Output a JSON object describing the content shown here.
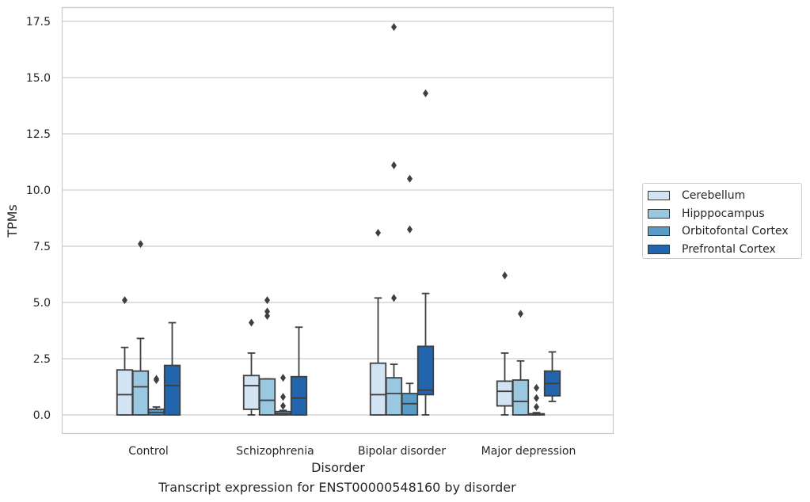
{
  "chart_data": {
    "type": "box",
    "title": "",
    "caption": "Transcript expression for ENST00000548160 by disorder",
    "xlabel": "Disorder",
    "ylabel": "TPMs",
    "ylim": [
      -0.85,
      18.15
    ],
    "yticks": [
      "0.0",
      "2.5",
      "5.0",
      "7.5",
      "10.0",
      "12.5",
      "15.0",
      "17.5"
    ],
    "grid": "horizontal",
    "legend_position": "right",
    "categories": [
      "Control",
      "Schizophrenia",
      "Bipolar disorder",
      "Major depression"
    ],
    "series": [
      {
        "name": "Cerebellum",
        "color": "#d2e3f3",
        "boxes": [
          {
            "q1": 0.0,
            "median": 0.9,
            "q3": 2.0,
            "whisker_low": 0.0,
            "whisker_high": 3.0,
            "outliers": [
              5.1
            ]
          },
          {
            "q1": 0.25,
            "median": 1.3,
            "q3": 1.75,
            "whisker_low": 0.0,
            "whisker_high": 2.75,
            "outliers": [
              4.1
            ]
          },
          {
            "q1": 0.0,
            "median": 0.9,
            "q3": 2.3,
            "whisker_low": 0.0,
            "whisker_high": 5.2,
            "outliers": [
              8.1
            ]
          },
          {
            "q1": 0.4,
            "median": 1.05,
            "q3": 1.5,
            "whisker_low": 0.0,
            "whisker_high": 2.75,
            "outliers": [
              6.2
            ]
          }
        ]
      },
      {
        "name": "Hipppocampus",
        "color": "#9ac8e0",
        "boxes": [
          {
            "q1": 0.0,
            "median": 1.25,
            "q3": 1.95,
            "whisker_low": 0.0,
            "whisker_high": 3.4,
            "outliers": [
              7.6
            ]
          },
          {
            "q1": 0.0,
            "median": 0.65,
            "q3": 1.6,
            "whisker_low": 0.0,
            "whisker_high": 1.6,
            "outliers": [
              4.4,
              4.6,
              5.1
            ]
          },
          {
            "q1": 0.0,
            "median": 0.95,
            "q3": 1.65,
            "whisker_low": 0.0,
            "whisker_high": 2.25,
            "outliers": [
              5.2,
              11.1,
              17.25
            ]
          },
          {
            "q1": 0.0,
            "median": 0.6,
            "q3": 1.55,
            "whisker_low": 0.0,
            "whisker_high": 2.4,
            "outliers": [
              4.5
            ]
          }
        ]
      },
      {
        "name": "Orbitofontal Cortex",
        "color": "#5a9cc8",
        "boxes": [
          {
            "q1": 0.0,
            "median": 0.1,
            "q3": 0.25,
            "whisker_low": 0.0,
            "whisker_high": 0.35,
            "outliers": [
              1.55,
              1.6
            ]
          },
          {
            "q1": 0.0,
            "median": 0.05,
            "q3": 0.15,
            "whisker_low": 0.0,
            "whisker_high": 0.2,
            "outliers": [
              0.4,
              0.8,
              1.65
            ]
          },
          {
            "q1": 0.0,
            "median": 0.5,
            "q3": 0.95,
            "whisker_low": 0.0,
            "whisker_high": 1.4,
            "outliers": [
              8.25,
              10.5
            ]
          },
          {
            "q1": 0.0,
            "median": 0.02,
            "q3": 0.05,
            "whisker_low": 0.0,
            "whisker_high": 0.1,
            "outliers": [
              0.35,
              0.75,
              1.2
            ]
          }
        ]
      },
      {
        "name": "Prefrontal Cortex",
        "color": "#2166ac",
        "boxes": [
          {
            "q1": 0.0,
            "median": 1.3,
            "q3": 2.2,
            "whisker_low": 0.0,
            "whisker_high": 4.1,
            "outliers": []
          },
          {
            "q1": 0.0,
            "median": 0.75,
            "q3": 1.7,
            "whisker_low": 0.0,
            "whisker_high": 3.9,
            "outliers": []
          },
          {
            "q1": 0.9,
            "median": 1.1,
            "q3": 3.05,
            "whisker_low": 0.0,
            "whisker_high": 5.4,
            "outliers": [
              14.3
            ]
          },
          {
            "q1": 0.85,
            "median": 1.4,
            "q3": 1.95,
            "whisker_low": 0.6,
            "whisker_high": 2.8,
            "outliers": []
          }
        ]
      }
    ]
  }
}
